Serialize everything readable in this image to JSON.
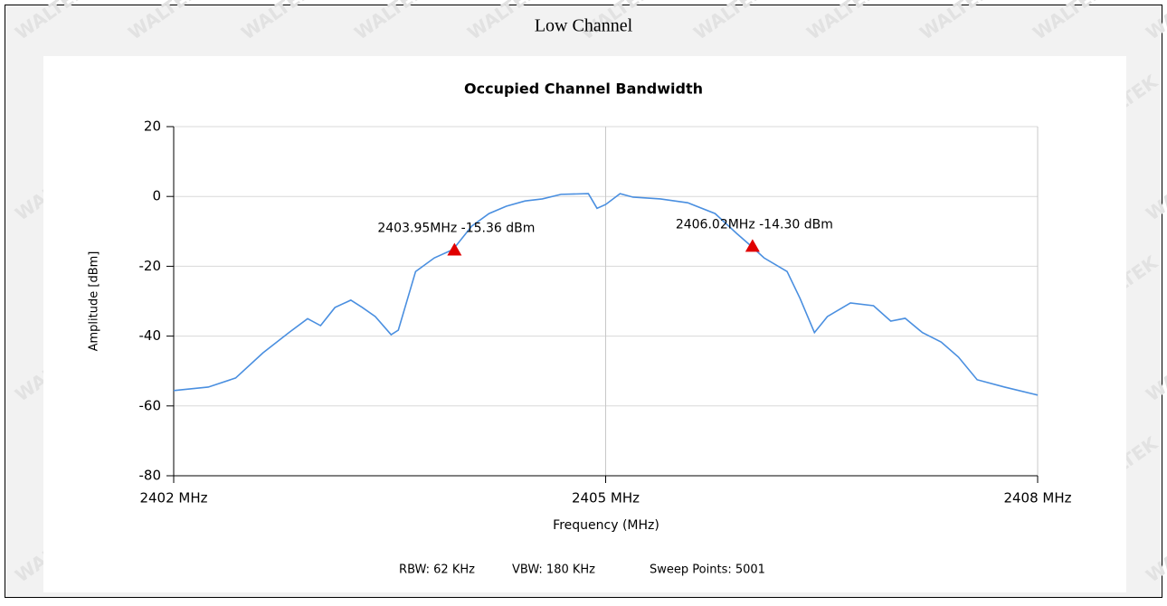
{
  "header": {
    "title": "Low Channel"
  },
  "watermark": "WALTEK",
  "chart_data": {
    "type": "line",
    "title": "Occupied Channel Bandwidth",
    "x_label": "Frequency (MHz)",
    "y_label": "Amplitude [dBm]",
    "xlim": [
      2402,
      2408
    ],
    "xticks": [
      {
        "value": 2402,
        "label": "2402 MHz"
      },
      {
        "value": 2405,
        "label": "2405 MHz"
      },
      {
        "value": 2408,
        "label": "2408 MHz"
      }
    ],
    "ylim": [
      -80,
      20
    ],
    "yticks": [
      -80,
      -60,
      -40,
      -20,
      0,
      20
    ],
    "grid": true,
    "x": [
      2402,
      2402.24,
      2402.43,
      2402.62,
      2402.8,
      2402.93,
      2403.02,
      2403.12,
      2403.23,
      2403.31,
      2403.4,
      2403.51,
      2403.56,
      2403.68,
      2403.81,
      2403.94,
      2404.07,
      2404.19,
      2404.31,
      2404.44,
      2404.56,
      2404.69,
      2404.88,
      2404.94,
      2405.0,
      2405.1,
      2405.19,
      2405.38,
      2405.57,
      2405.76,
      2405.91,
      2406.01,
      2406.1,
      2406.26,
      2406.35,
      2406.45,
      2406.54,
      2406.7,
      2406.86,
      2406.98,
      2407.08,
      2407.2,
      2407.33,
      2407.45,
      2407.58,
      2407.77,
      2408.0
    ],
    "series": [
      {
        "color": "#4a8fe0",
        "values": [
          -55.6,
          -54.6,
          -52,
          -44.8,
          -39,
          -35,
          -37,
          -31.8,
          -29.7,
          -31.8,
          -34.4,
          -39.6,
          -38.3,
          -21.5,
          -17.6,
          -15.2,
          -8.5,
          -4.9,
          -2.8,
          -1.3,
          -0.7,
          0.6,
          0.8,
          -3.4,
          -2.3,
          0.8,
          -0.2,
          -0.7,
          -1.8,
          -4.9,
          -10.6,
          -14.2,
          -17.6,
          -21.5,
          -29.2,
          -39,
          -34.4,
          -30.5,
          -31.3,
          -35.7,
          -34.9,
          -39,
          -41.7,
          -46,
          -52.5,
          -54.6,
          -56.9
        ]
      }
    ],
    "markers": [
      {
        "x": 2403.95,
        "y": -15.36,
        "label": "2403.95MHz  -15.36 dBm",
        "color": "#e00000"
      },
      {
        "x": 2406.02,
        "y": -14.3,
        "label": "2406.02MHz  -14.30 dBm",
        "color": "#e00000"
      }
    ],
    "footer": [
      "RBW: 62 KHz",
      "VBW: 180 KHz",
      "Sweep Points: 5001"
    ]
  }
}
